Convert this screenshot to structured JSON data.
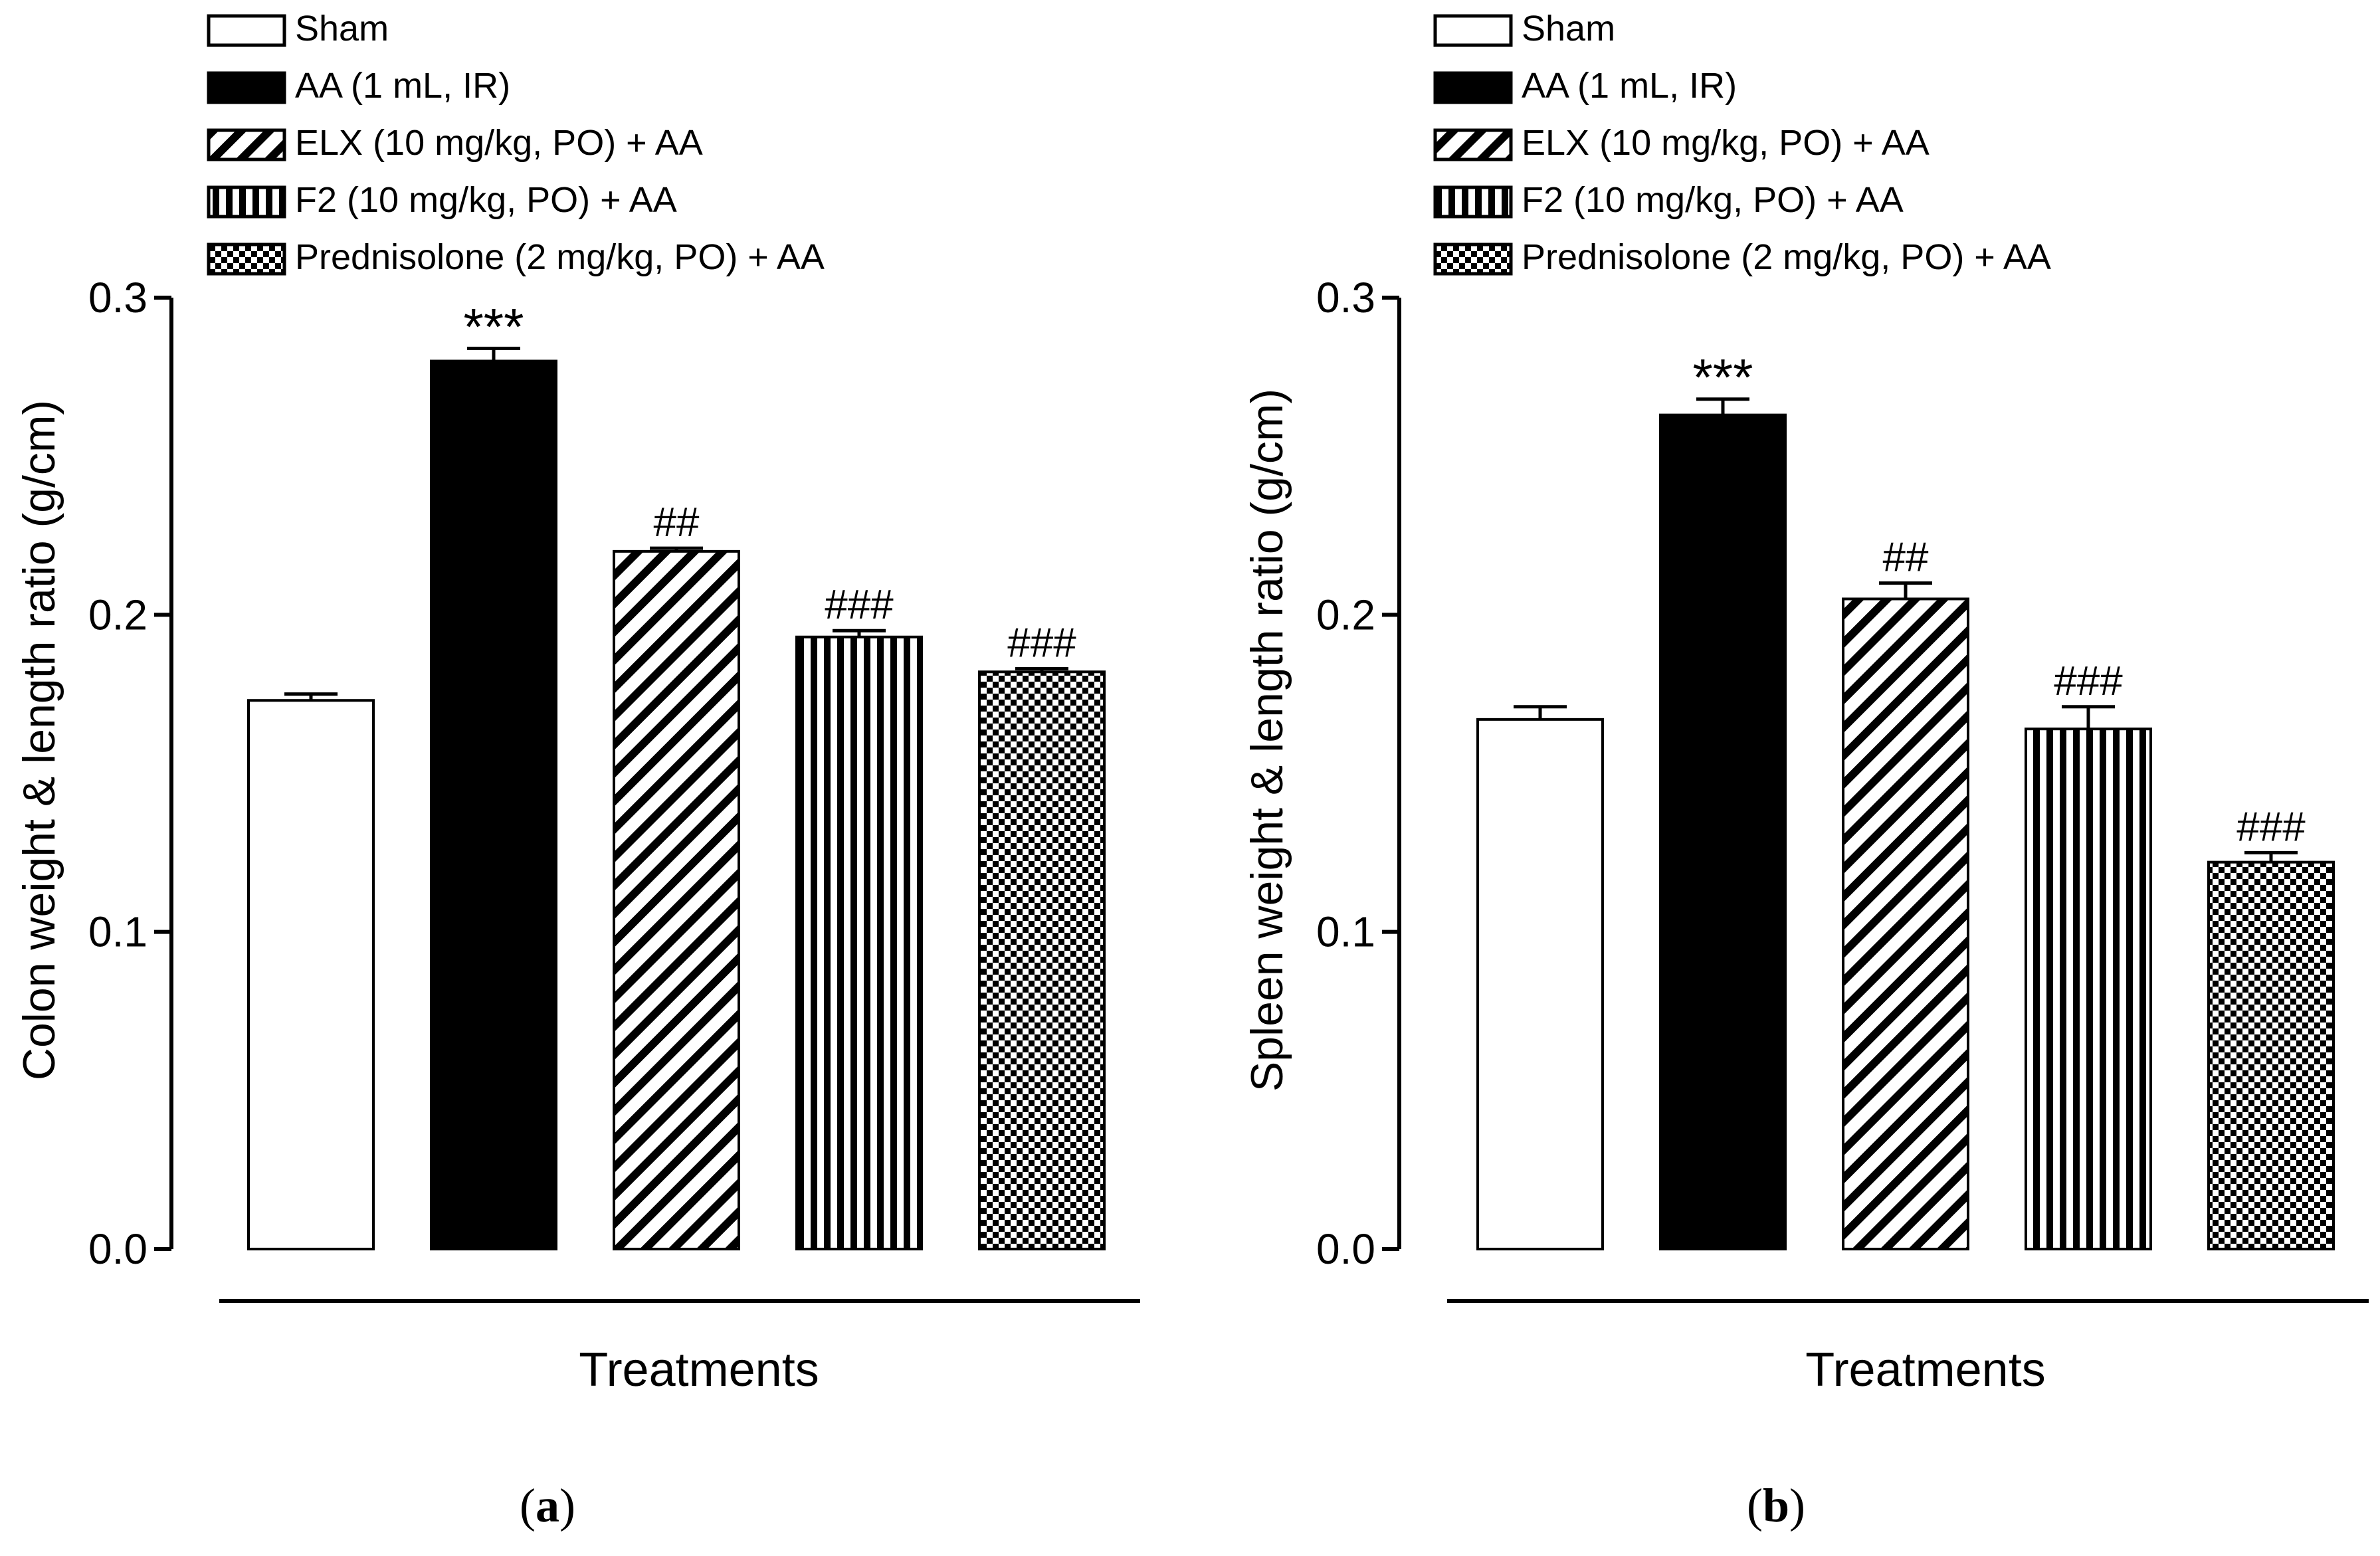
{
  "legend": [
    {
      "label": "Sham",
      "pattern": "white"
    },
    {
      "label": "AA (1 mL, IR)",
      "pattern": "black"
    },
    {
      "label": "ELX (10 mg/kg, PO) + AA",
      "pattern": "diagonal"
    },
    {
      "label": "F2 (10 mg/kg, PO) + AA",
      "pattern": "vertical"
    },
    {
      "label": "Prednisolone (2 mg/kg, PO) + AA",
      "pattern": "checker"
    }
  ],
  "chart_data": [
    {
      "type": "bar",
      "panel_label_parts": [
        "(",
        "a",
        ")"
      ],
      "categories": [
        "Sham",
        "AA (1 mL, IR)",
        "ELX (10 mg/kg, PO) + AA",
        "F2 (10 mg/kg, PO) + AA",
        "Prednisolone (2 mg/kg, PO) + AA"
      ],
      "values": [
        0.173,
        0.28,
        0.22,
        0.193,
        0.182
      ],
      "errors": [
        0.002,
        0.004,
        0.001,
        0.002,
        0.001
      ],
      "significance": [
        "",
        "***",
        "##",
        "###",
        "###"
      ],
      "xlabel": "Treatments",
      "ylabel": "Colon weight & length ratio (g/cm)",
      "ylim": [
        0,
        0.3
      ],
      "yticks": [
        "0.0",
        "0.1",
        "0.2",
        "0.3"
      ]
    },
    {
      "type": "bar",
      "panel_label_parts": [
        "(",
        "b",
        ")"
      ],
      "categories": [
        "Sham",
        "AA (1 mL, IR)",
        "ELX (10 mg/kg, PO) + AA",
        "F2 (10 mg/kg, PO) + AA",
        "Prednisolone (2 mg/kg, PO) + AA"
      ],
      "values": [
        0.167,
        0.263,
        0.205,
        0.164,
        0.122
      ],
      "errors": [
        0.004,
        0.005,
        0.005,
        0.007,
        0.003
      ],
      "significance": [
        "",
        "***",
        "##",
        "###",
        "###"
      ],
      "xlabel": "Treatments",
      "ylabel": "Spleen weight & length ratio (g/cm)",
      "ylim": [
        0,
        0.3
      ],
      "yticks": [
        "0.0",
        "0.1",
        "0.2",
        "0.3"
      ]
    }
  ]
}
